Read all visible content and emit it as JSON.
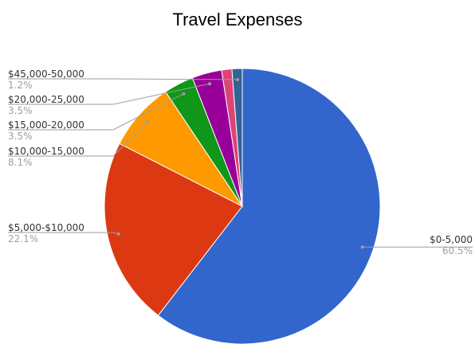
{
  "chart_data": {
    "type": "pie",
    "title": "Travel Expenses",
    "slices": [
      {
        "label": "$0-5,000",
        "percent_label": "60.5%",
        "value": 60.5,
        "color": "#3366cc"
      },
      {
        "label": "$5,000-$10,000",
        "percent_label": "22.1%",
        "value": 22.1,
        "color": "#dc3912"
      },
      {
        "label": "$10,000-15,000",
        "percent_label": "8.1%",
        "value": 8.1,
        "color": "#ff9900"
      },
      {
        "label": "$15,000-20,000",
        "percent_label": "3.5%",
        "value": 3.5,
        "color": "#109618"
      },
      {
        "label": "$20,000-25,000",
        "percent_label": "3.5%",
        "value": 3.5,
        "color": "#990099"
      },
      {
        "label": "",
        "percent_label": "",
        "value": 1.2,
        "color": "#dd4477"
      },
      {
        "label": "$45,000-50,000",
        "percent_label": "1.2%",
        "value": 1.2,
        "color": "#316395"
      }
    ],
    "legend": "none",
    "label_style": "callout lines with category and percent"
  }
}
